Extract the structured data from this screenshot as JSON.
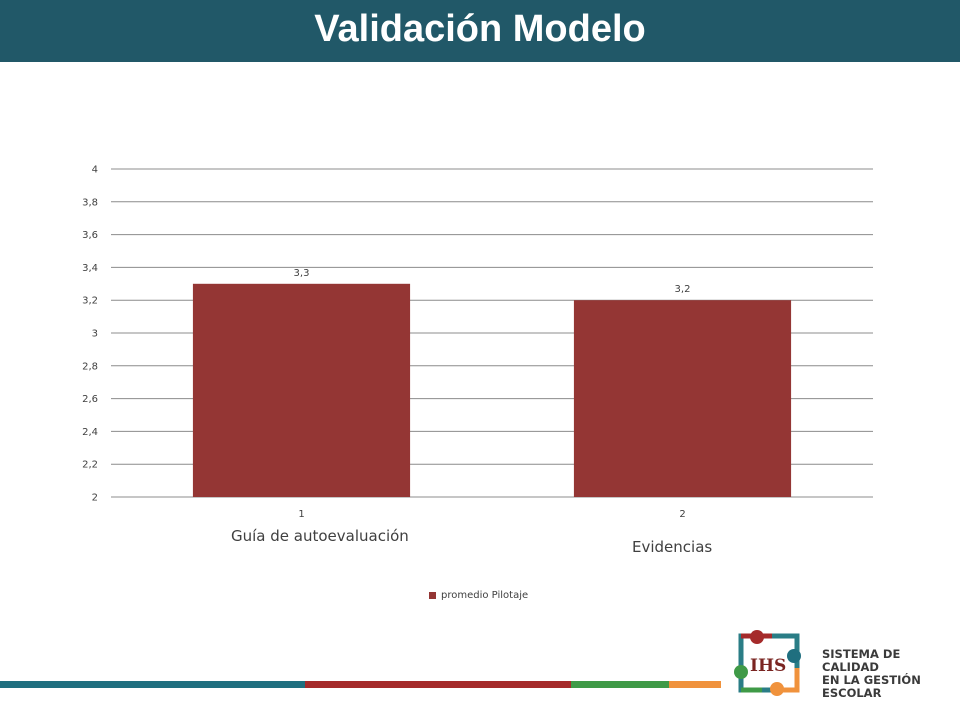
{
  "slide": {
    "title": "Validación Modelo"
  },
  "colors": {
    "header": "#215868",
    "bar": "#943634",
    "stripes": [
      "#1f6f7f",
      "#a52a2a",
      "#3f9a47",
      "#f0923c"
    ]
  },
  "chart_data": {
    "type": "bar",
    "categories": [
      "1",
      "2"
    ],
    "category_descriptions": [
      "Guía de autoevaluación",
      "Evidencias"
    ],
    "series": [
      {
        "name": "promedio Pilotaje",
        "values": [
          3.3,
          3.2
        ],
        "color": "#943634"
      }
    ],
    "data_labels": [
      "3,3",
      "3,2"
    ],
    "y_ticks": [
      "2",
      "2,2",
      "2,4",
      "2,6",
      "2,8",
      "3",
      "3,2",
      "3,4",
      "3,6",
      "3,8",
      "4"
    ],
    "ylim": [
      2,
      4
    ],
    "grid": true,
    "legend_position": "bottom"
  },
  "logo": {
    "icon_name": "ihs-emblem-icon",
    "text_lines": [
      "SISTEMA DE CALIDAD",
      "EN LA GESTIÓN",
      "ESCOLAR"
    ]
  }
}
